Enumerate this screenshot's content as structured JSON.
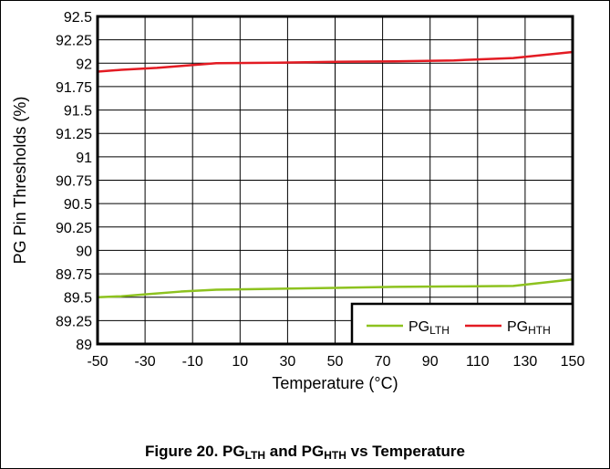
{
  "chart_data": {
    "type": "line",
    "title": "",
    "xlabel": "Temperature (°C)",
    "ylabel": "PG Pin Thresholds (%)",
    "xlim": [
      -50,
      150
    ],
    "ylim": [
      89,
      92.5
    ],
    "x_ticks": [
      -50,
      -30,
      -10,
      10,
      30,
      50,
      70,
      90,
      110,
      130,
      150
    ],
    "y_ticks": [
      89,
      89.25,
      89.5,
      89.75,
      90,
      90.25,
      90.5,
      90.75,
      91,
      91.25,
      91.5,
      91.75,
      92,
      92.25,
      92.5
    ],
    "y_tick_labels": [
      "89",
      "89.25",
      "89.5",
      "89.75",
      "90",
      "90.25",
      "90.5",
      "90.75",
      "91",
      "91.25",
      "91.5",
      "91.75",
      "92",
      "92.25",
      "92.5"
    ],
    "grid": true,
    "legend_position": "bottom-right",
    "series": [
      {
        "name": "PG_LTH",
        "legend_main": "PG",
        "legend_sub": "LTH",
        "color": "#8dc21f",
        "x": [
          -50,
          -40,
          -30,
          -15,
          0,
          25,
          50,
          75,
          100,
          125,
          150
        ],
        "y": [
          89.5,
          89.51,
          89.53,
          89.56,
          89.58,
          89.59,
          89.6,
          89.61,
          89.615,
          89.62,
          89.69
        ]
      },
      {
        "name": "PG_HTH",
        "legend_main": "PG",
        "legend_sub": "HTH",
        "color": "#e31b23",
        "x": [
          -50,
          -40,
          -25,
          0,
          25,
          50,
          75,
          100,
          125,
          150
        ],
        "y": [
          91.91,
          91.93,
          91.95,
          92.0,
          92.005,
          92.015,
          92.02,
          92.03,
          92.055,
          92.12
        ]
      }
    ]
  },
  "caption": {
    "prefix": "Figure 20. PG",
    "sub1": "LTH",
    "middle": " and PG",
    "sub2": "HTH",
    "suffix": " vs Temperature"
  }
}
